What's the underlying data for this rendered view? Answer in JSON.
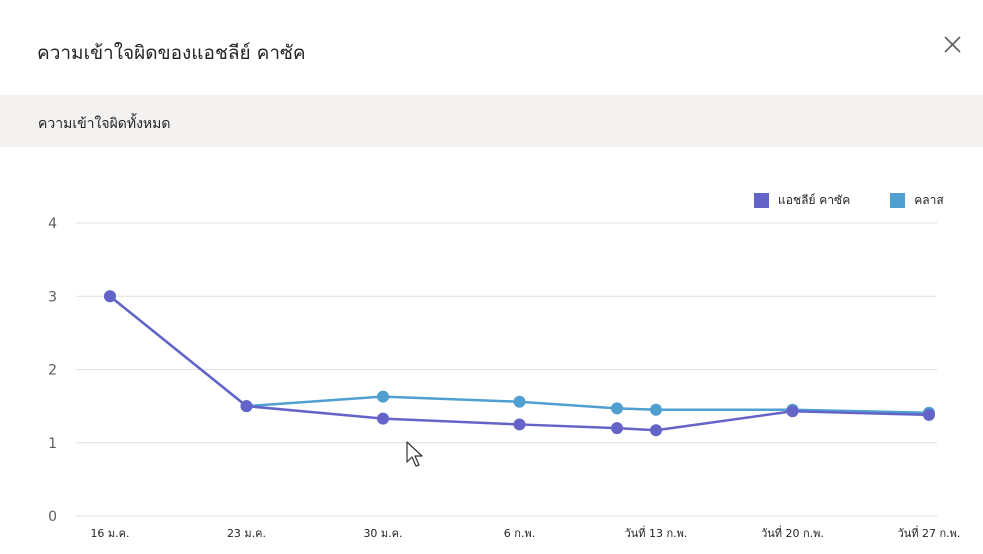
{
  "header": {
    "title": "ความเข้าใจผิดของแอชลีย์ คาซัค",
    "close_icon": "close-icon"
  },
  "subheader": {
    "label": "ความเข้าใจผิดทั้งหมด"
  },
  "colors": {
    "student": "#6464c8",
    "class": "#4f9fd0",
    "grid": "#e1dfdd",
    "axis_text": "#605e5c"
  },
  "chart_data": {
    "type": "line",
    "categories": [
      "16 ม.ค.",
      "23 ม.ค.",
      "30 ม.ค.",
      "6 ก.พ.",
      "",
      "วันที่ 13 ก.พ.",
      "วันที่ 20 ก.พ.",
      "วันที่ 27 ก.พ."
    ],
    "x_dates": [
      "2024-01-16",
      "2024-01-23",
      "2024-01-30",
      "2024-02-06",
      "2024-02-11",
      "2024-02-13",
      "2024-02-20",
      "2024-02-27"
    ],
    "series": [
      {
        "name": "แอชลีย์ คาซัค",
        "values": [
          3,
          1.5,
          1.33,
          1.25,
          1.2,
          1.17,
          1.43,
          1.38
        ]
      },
      {
        "name": "คลาส",
        "values": [
          3,
          1.5,
          1.63,
          1.56,
          1.47,
          1.45,
          1.45,
          1.41
        ]
      }
    ],
    "yticks": [
      0,
      1,
      2,
      3,
      4
    ],
    "ylim": [
      0,
      4
    ],
    "grid": true,
    "legend_position": "top-right",
    "title": "",
    "xlabel": "",
    "ylabel": ""
  }
}
